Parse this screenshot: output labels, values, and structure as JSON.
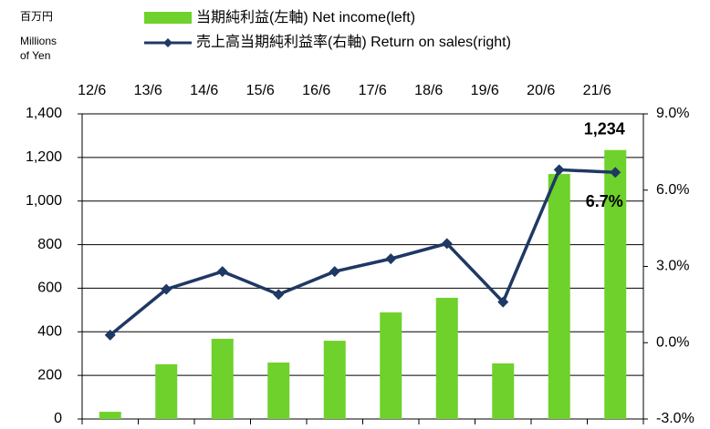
{
  "chart_data": {
    "type": "bar_line",
    "unit_label": "百万円",
    "unit_label_en": [
      "Millions",
      "of Yen"
    ],
    "categories": [
      "12/6",
      "13/6",
      "14/6",
      "15/6",
      "16/6",
      "17/6",
      "18/6",
      "19/6",
      "20/6",
      "21/6"
    ],
    "series": [
      {
        "name": "当期純利益(左軸)  Net income(left)",
        "type": "bar",
        "color": "#6fd12b",
        "values": [
          33,
          251,
          368,
          259,
          359,
          489,
          556,
          255,
          1124,
          1234
        ],
        "value_labels": [
          null,
          null,
          null,
          null,
          null,
          null,
          null,
          null,
          null,
          "1,234"
        ]
      },
      {
        "name": "売上高当期純利益率(右軸)  Return on sales(right)",
        "type": "line",
        "axis": "y2",
        "color": "#1f3864",
        "values": [
          0.3,
          2.1,
          2.8,
          1.9,
          2.8,
          3.3,
          3.9,
          1.6,
          6.8,
          6.7
        ],
        "value_labels": [
          null,
          null,
          null,
          null,
          null,
          null,
          null,
          null,
          null,
          "6.7%"
        ]
      }
    ],
    "ylim": [
      0,
      1400
    ],
    "yticks": [
      0,
      200,
      400,
      600,
      800,
      {
        "value": 1000,
        "label": "1,000"
      },
      {
        "value": 1200,
        "label": "1,200"
      },
      {
        "value": 1400,
        "label": "1,400"
      }
    ],
    "y2lim": [
      -3,
      9
    ],
    "y2ticks": [
      {
        "value": -3,
        "label": "-3.0%"
      },
      {
        "value": 0,
        "label": "0.0%"
      },
      {
        "value": 3,
        "label": "3.0%"
      },
      {
        "value": 6,
        "label": "6.0%"
      },
      {
        "value": 9,
        "label": "9.0%"
      }
    ],
    "grid": true
  }
}
